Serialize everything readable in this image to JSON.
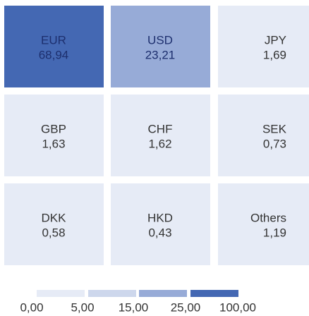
{
  "chart_data": {
    "type": "heatmap",
    "categories": [
      "EUR",
      "USD",
      "JPY",
      "GBP",
      "CHF",
      "SEK",
      "DKK",
      "HKD",
      "Others"
    ],
    "values": [
      68.94,
      23.21,
      1.69,
      1.63,
      1.62,
      0.73,
      0.58,
      0.43,
      1.19
    ],
    "value_labels": [
      "68,94",
      "23,21",
      "1,69",
      "1,63",
      "1,62",
      "0,73",
      "0,58",
      "0,43",
      "1,19"
    ],
    "legend_ticks": [
      {
        "value": 0,
        "label": "0,00"
      },
      {
        "value": 5,
        "label": "5,00"
      },
      {
        "value": 15,
        "label": "15,00"
      },
      {
        "value": 25,
        "label": "25,00"
      },
      {
        "value": 100,
        "label": "100,00"
      }
    ],
    "legend_colors": [
      "#e6ebf6",
      "#cdd7ec",
      "#97abd7",
      "#4468b3"
    ]
  }
}
